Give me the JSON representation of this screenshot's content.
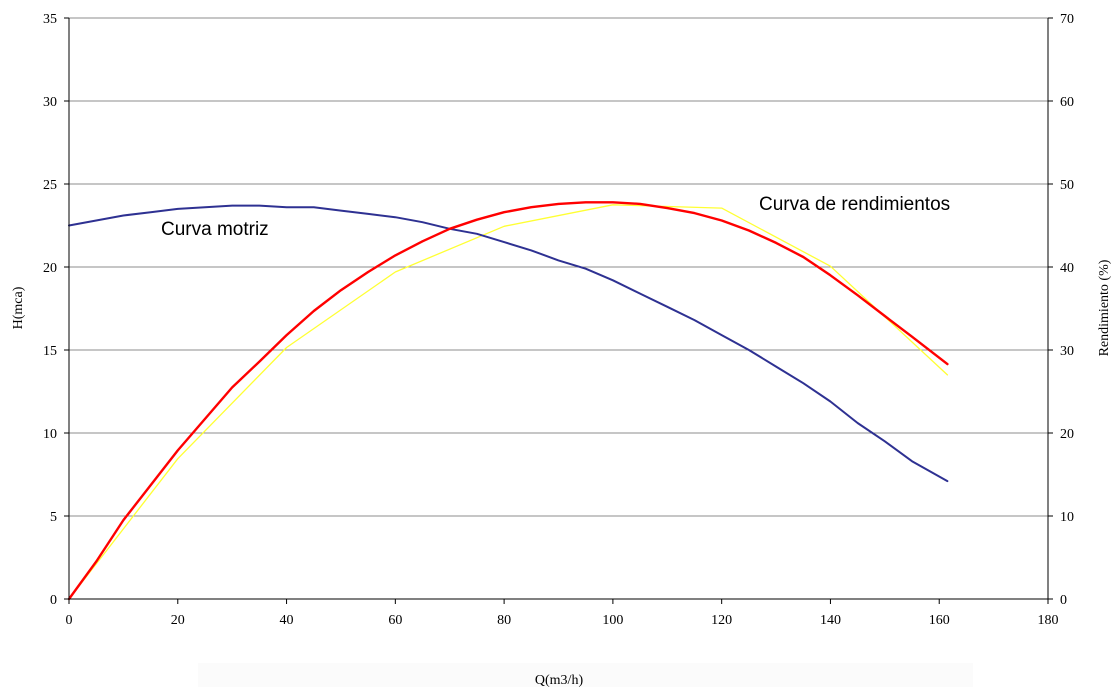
{
  "chart_data": {
    "type": "line",
    "xlabel": "Q(m3/h)",
    "ylabel": "H(mca)",
    "y2label": "Rendimiento (%)",
    "xlim": [
      0,
      180
    ],
    "ylim": [
      0,
      35
    ],
    "y2lim": [
      0,
      70
    ],
    "xticks": [
      0,
      20,
      40,
      60,
      80,
      100,
      120,
      140,
      160,
      180
    ],
    "yticks": [
      0,
      5,
      10,
      15,
      20,
      25,
      30,
      35
    ],
    "y2ticks": [
      0,
      10,
      20,
      30,
      40,
      50,
      60,
      70
    ],
    "grid": "horizontal",
    "annotations": [
      {
        "text": "Curva motriz",
        "x": 17,
        "y": 22.1
      },
      {
        "text": "Curva de rendimientos",
        "x": 126,
        "y": 23.9
      }
    ],
    "series": [
      {
        "axis": "left",
        "color": "#2e3192",
        "x": [
          0,
          5,
          10,
          15,
          20,
          25,
          30,
          35,
          40,
          45,
          50,
          55,
          60,
          65,
          70,
          75,
          80,
          85,
          90,
          95,
          100,
          105,
          110,
          115,
          120,
          125,
          130,
          135,
          140,
          145,
          150,
          155,
          161.5
        ],
        "y": [
          22.5,
          22.8,
          23.1,
          23.3,
          23.5,
          23.6,
          23.7,
          23.7,
          23.6,
          23.6,
          23.4,
          23.2,
          23.0,
          22.7,
          22.3,
          22.0,
          21.5,
          21.0,
          20.4,
          19.9,
          19.2,
          18.4,
          17.6,
          16.8,
          15.9,
          15.0,
          14.0,
          13.0,
          11.9,
          10.6,
          9.5,
          8.3,
          7.1
        ]
      },
      {
        "axis": "right",
        "color": "#ff0000",
        "x": [
          0,
          5,
          10,
          15,
          20,
          25,
          30,
          35,
          40,
          45,
          50,
          55,
          60,
          65,
          70,
          75,
          80,
          85,
          90,
          95,
          100,
          105,
          110,
          115,
          120,
          125,
          130,
          135,
          140,
          145,
          150,
          155,
          161.5
        ],
        "y": [
          0,
          4.5,
          9.5,
          13.7,
          17.9,
          21.7,
          25.5,
          28.6,
          31.8,
          34.7,
          37.2,
          39.4,
          41.4,
          43.1,
          44.6,
          45.7,
          46.6,
          47.2,
          47.6,
          47.8,
          47.8,
          47.6,
          47.1,
          46.5,
          45.6,
          44.4,
          42.9,
          41.2,
          39.0,
          36.6,
          34.1,
          31.6,
          28.3
        ]
      },
      {
        "axis": "right",
        "color": "#ffff33",
        "x": [
          0,
          20,
          40,
          60,
          80,
          100,
          120,
          140,
          161.5
        ],
        "y": [
          0,
          16.9,
          30.3,
          39.4,
          44.9,
          47.5,
          47.1,
          40.1,
          27.0
        ]
      }
    ]
  }
}
